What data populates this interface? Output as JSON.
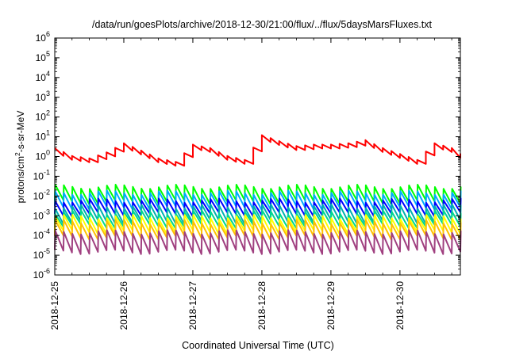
{
  "chart_data": {
    "type": "line",
    "title": "/data/run/goesPlots/archive/2018-12-30/21:00/flux/../flux/5daysMarsFluxes.txt",
    "xlabel": "Coordinated Universal Time (UTC)",
    "ylabel_parts": [
      "protons/cm",
      "2",
      "-s-sr-MeV"
    ],
    "y_scale": "log",
    "ylim": [
      1e-06,
      1000000.0
    ],
    "y_ticks": [
      {
        "base": "10",
        "exp": "-6",
        "value": -6
      },
      {
        "base": "10",
        "exp": "-5",
        "value": -5
      },
      {
        "base": "10",
        "exp": "-4",
        "value": -4
      },
      {
        "base": "10",
        "exp": "-3",
        "value": -3
      },
      {
        "base": "10",
        "exp": "-2",
        "value": -2
      },
      {
        "base": "10",
        "exp": "-1",
        "value": -1
      },
      {
        "base": "10",
        "exp": "0",
        "value": 0
      },
      {
        "base": "10",
        "exp": "1",
        "value": 1
      },
      {
        "base": "10",
        "exp": "2",
        "value": 2
      },
      {
        "base": "10",
        "exp": "3",
        "value": 3
      },
      {
        "base": "10",
        "exp": "4",
        "value": 4
      },
      {
        "base": "10",
        "exp": "5",
        "value": 5
      },
      {
        "base": "10",
        "exp": "6",
        "value": 6
      }
    ],
    "x_range_days": [
      "2018-12-25T00:00",
      "2018-12-30T21:00"
    ],
    "x_ticks": [
      "2018-12-25",
      "2018-12-26",
      "2018-12-27",
      "2018-12-28",
      "2018-12-29",
      "2018-12-30"
    ],
    "grid": false,
    "legend": "none",
    "sawtooth_period_hours": 3,
    "series": [
      {
        "color": "#ff0000",
        "style": "envelope",
        "x": [
          "2018-12-25T00:00",
          "2018-12-25T06:00",
          "2018-12-25T12:00",
          "2018-12-25T18:00",
          "2018-12-26T00:00",
          "2018-12-26T06:00",
          "2018-12-26T12:00",
          "2018-12-26T18:00",
          "2018-12-27T00:00",
          "2018-12-27T06:00",
          "2018-12-27T12:00",
          "2018-12-27T18:00",
          "2018-12-28T00:00",
          "2018-12-28T06:00",
          "2018-12-28T12:00",
          "2018-12-28T18:00",
          "2018-12-29T00:00",
          "2018-12-29T06:00",
          "2018-12-29T12:00",
          "2018-12-29T18:00",
          "2018-12-30T00:00",
          "2018-12-30T06:00",
          "2018-12-30T12:00",
          "2018-12-30T18:00",
          "2018-12-30T21:00"
        ],
        "y": [
          2.0,
          0.8,
          0.6,
          1.2,
          3.5,
          1.5,
          0.6,
          0.4,
          3.0,
          2.0,
          0.8,
          0.5,
          9.0,
          4.5,
          2.5,
          3.0,
          3.0,
          3.5,
          5.0,
          2.0,
          1.0,
          0.5,
          3.5,
          2.0,
          1.0
        ]
      },
      {
        "color": "#00ff00",
        "style": "sawtooth",
        "low": 0.005,
        "high": 0.03
      },
      {
        "color": "#00aaff",
        "style": "sawtooth",
        "low": 0.0025,
        "high": 0.015
      },
      {
        "color": "#0000ff",
        "style": "sawtooth",
        "low": 0.0012,
        "high": 0.006
      },
      {
        "color": "#00b0b0",
        "style": "sawtooth",
        "low": 0.0005,
        "high": 0.003
      },
      {
        "color": "#00d890",
        "style": "sawtooth",
        "low": 0.0003,
        "high": 0.0015
      },
      {
        "color": "#ffff00",
        "style": "sawtooth",
        "low": 0.00015,
        "high": 0.0009
      },
      {
        "color": "#ffc000",
        "style": "sawtooth",
        "low": 8e-05,
        "high": 0.0005
      },
      {
        "color": "#a04080",
        "style": "sawtooth",
        "low": 1.5e-05,
        "high": 0.00015
      }
    ]
  }
}
